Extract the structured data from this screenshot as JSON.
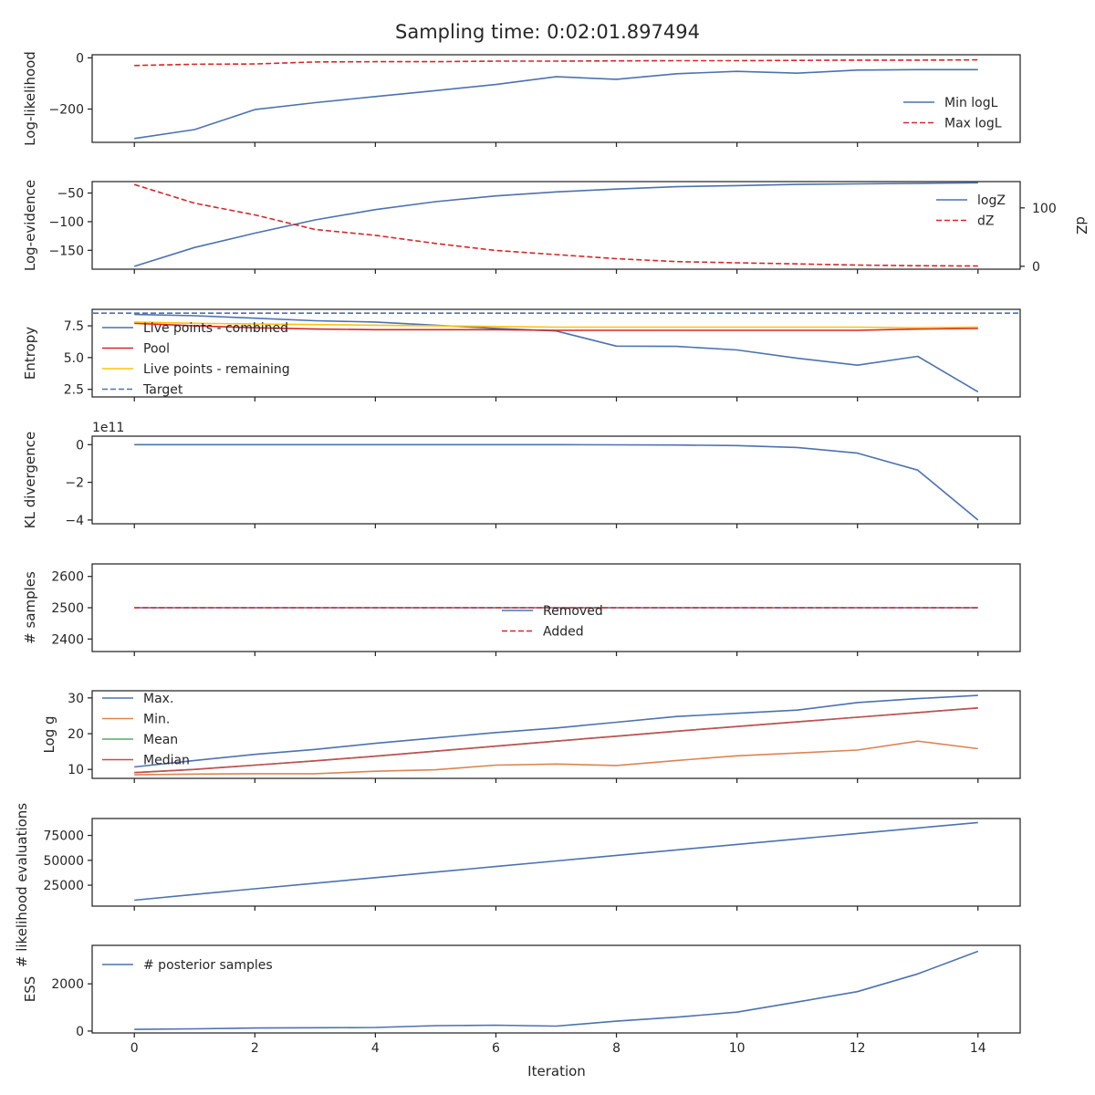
{
  "figure": {
    "title": "Sampling time: 0:02:01.897494",
    "xlabel": "Iteration"
  },
  "chart_data": [
    {
      "type": "line",
      "ylabel": "Log-likelihood",
      "xlim": [
        -0.7,
        14.7
      ],
      "ylim": [
        -330,
        12
      ],
      "yticks": [
        0,
        -200
      ],
      "ytick_labels": [
        "0",
        "−200"
      ],
      "legend_position": "center-right",
      "x": [
        0,
        1,
        2,
        3,
        4,
        5,
        6,
        7,
        8,
        9,
        10,
        11,
        12,
        13,
        14
      ],
      "series": [
        {
          "name": "Min logL",
          "color": "#4c72b0",
          "dash": "solid",
          "values": [
            -315,
            -280,
            -202,
            -175,
            -151,
            -128,
            -104,
            -74,
            -84,
            -62,
            -53,
            -60,
            -48,
            -46,
            -46
          ]
        },
        {
          "name": "Max logL",
          "color": "#d62728",
          "dash": "dashed",
          "values": [
            -30,
            -25,
            -24,
            -16,
            -15,
            -15,
            -13,
            -13,
            -12,
            -11,
            -11,
            -10,
            -9,
            -9,
            -8
          ]
        }
      ]
    },
    {
      "type": "line",
      "ylabel": "Log-evidence",
      "ylabel_right": "dZ",
      "xlim": [
        -0.7,
        14.7
      ],
      "ylim": [
        -183,
        -30
      ],
      "yticks": [
        -50,
        -100,
        -150
      ],
      "ytick_labels": [
        "−50",
        "−100",
        "−150"
      ],
      "ylim_right": [
        -5,
        145
      ],
      "yticks_right": [
        100,
        0
      ],
      "ytick_labels_right": [
        "100",
        "0"
      ],
      "legend_position": "top-right",
      "x": [
        0,
        1,
        2,
        3,
        4,
        5,
        6,
        7,
        8,
        9,
        10,
        11,
        12,
        13,
        14
      ],
      "series": [
        {
          "name": "logZ",
          "color": "#4c72b0",
          "dash": "solid",
          "axis": "left",
          "values": [
            -178,
            -145,
            -120,
            -97,
            -79,
            -65,
            -55,
            -48,
            -43,
            -39,
            -37,
            -35,
            -34,
            -33,
            -32
          ]
        },
        {
          "name": "dZ",
          "color": "#d62728",
          "dash": "dashed",
          "axis": "right",
          "values": [
            140,
            108,
            88,
            63,
            53,
            39,
            27,
            20,
            13,
            8,
            6,
            4,
            2,
            1,
            0.5
          ]
        }
      ]
    },
    {
      "type": "line",
      "ylabel": "Entropy",
      "xlim": [
        -0.7,
        14.7
      ],
      "ylim": [
        1.9,
        8.8
      ],
      "yticks": [
        7.5,
        5.0,
        2.5
      ],
      "ytick_labels": [
        "7.5",
        "5.0",
        "2.5"
      ],
      "legend_position": "top-left",
      "x": [
        0,
        1,
        2,
        3,
        4,
        5,
        6,
        7,
        8,
        9,
        10,
        11,
        12,
        13,
        14
      ],
      "series": [
        {
          "name": "Live points - combined",
          "color": "#4c72b0",
          "dash": "solid",
          "values": [
            8.4,
            8.3,
            8.1,
            7.9,
            7.8,
            7.55,
            7.3,
            7.1,
            5.9,
            5.88,
            5.6,
            4.95,
            4.4,
            5.1,
            2.3
          ]
        },
        {
          "name": "Pool",
          "color": "#d62728",
          "dash": "solid",
          "values": [
            7.7,
            7.5,
            7.35,
            7.25,
            7.2,
            7.2,
            7.2,
            7.15,
            7.15,
            7.15,
            7.15,
            7.15,
            7.15,
            7.25,
            7.3
          ]
        },
        {
          "name": "Live points - remaining",
          "color": "#ffc20a",
          "dash": "solid",
          "values": [
            7.8,
            7.7,
            7.65,
            7.6,
            7.55,
            7.5,
            7.45,
            7.4,
            7.4,
            7.4,
            7.4,
            7.4,
            7.4,
            7.35,
            7.4
          ]
        },
        {
          "name": "Target",
          "color": "#4c72b0",
          "dash": "dashed",
          "values": [
            8.5,
            8.5,
            8.5,
            8.5,
            8.5,
            8.5,
            8.5,
            8.5,
            8.5,
            8.5,
            8.5,
            8.5,
            8.5,
            8.5,
            8.5
          ]
        }
      ]
    },
    {
      "type": "line",
      "ylabel": "KL divergence",
      "offset_text": "1e11",
      "xlim": [
        -0.7,
        14.7
      ],
      "ylim": [
        -4.2,
        0.45
      ],
      "yticks": [
        0,
        -2,
        -4
      ],
      "ytick_labels": [
        "0",
        "−2",
        "−4"
      ],
      "x": [
        0,
        1,
        2,
        3,
        4,
        5,
        6,
        7,
        8,
        9,
        10,
        11,
        12,
        13,
        14
      ],
      "series": [
        {
          "name": "",
          "color": "#4c72b0",
          "dash": "solid",
          "values": [
            0,
            0,
            0,
            0,
            0,
            0,
            0,
            0,
            -0.01,
            -0.02,
            -0.05,
            -0.15,
            -0.45,
            -1.35,
            -4.0
          ]
        }
      ]
    },
    {
      "type": "line",
      "ylabel": "# samples",
      "xlim": [
        -0.7,
        14.7
      ],
      "ylim": [
        2360,
        2640
      ],
      "yticks": [
        2600,
        2500,
        2400
      ],
      "ytick_labels": [
        "2600",
        "2500",
        "2400"
      ],
      "legend_position": "center",
      "x": [
        0,
        1,
        2,
        3,
        4,
        5,
        6,
        7,
        8,
        9,
        10,
        11,
        12,
        13,
        14
      ],
      "series": [
        {
          "name": "Removed",
          "color": "#4c72b0",
          "dash": "solid",
          "values": [
            2500,
            2500,
            2500,
            2500,
            2500,
            2500,
            2500,
            2500,
            2500,
            2500,
            2500,
            2500,
            2500,
            2500,
            2500
          ]
        },
        {
          "name": "Added",
          "color": "#d62728",
          "dash": "dashed",
          "values": [
            2500,
            2500,
            2500,
            2500,
            2500,
            2500,
            2500,
            2500,
            2500,
            2500,
            2500,
            2500,
            2500,
            2500,
            2500
          ]
        }
      ]
    },
    {
      "type": "line",
      "ylabel": "Log g",
      "xlim": [
        -0.7,
        14.7
      ],
      "ylim": [
        7.5,
        32
      ],
      "yticks": [
        30,
        20,
        10
      ],
      "ytick_labels": [
        "30",
        "20",
        "10"
      ],
      "legend_position": "top-left",
      "x": [
        0,
        1,
        2,
        3,
        4,
        5,
        6,
        7,
        8,
        9,
        10,
        11,
        12,
        13,
        14
      ],
      "series": [
        {
          "name": "Max.",
          "color": "#4c72b0",
          "dash": "solid",
          "values": [
            10.7,
            12.5,
            14.2,
            15.6,
            17.3,
            18.8,
            20.3,
            21.6,
            23.2,
            24.8,
            25.7,
            26.6,
            28.7,
            29.8,
            30.7
          ]
        },
        {
          "name": "Min.",
          "color": "#dd8452",
          "dash": "solid",
          "values": [
            8.5,
            8.7,
            8.8,
            8.8,
            9.5,
            9.9,
            11.2,
            11.5,
            11.1,
            12.5,
            13.8,
            14.6,
            15.4,
            17.9,
            15.8
          ]
        },
        {
          "name": "Mean",
          "color": "#55a868",
          "dash": "solid",
          "values": [
            9.1,
            10.0,
            11.2,
            12.4,
            13.7,
            15.1,
            16.5,
            17.9,
            19.3,
            20.7,
            22.0,
            23.3,
            24.6,
            25.9,
            27.2
          ]
        },
        {
          "name": "Median",
          "color": "#c44e52",
          "dash": "solid",
          "values": [
            9.1,
            10.0,
            11.2,
            12.4,
            13.7,
            15.1,
            16.5,
            17.9,
            19.3,
            20.7,
            22.0,
            23.3,
            24.6,
            25.9,
            27.2
          ]
        }
      ]
    },
    {
      "type": "line",
      "ylabel": "# likelihood evaluations",
      "xlim": [
        -0.7,
        14.7
      ],
      "ylim": [
        4000,
        92000
      ],
      "yticks": [
        75000,
        50000,
        25000
      ],
      "ytick_labels": [
        "75000",
        "50000",
        "25000"
      ],
      "x": [
        0,
        1,
        2,
        3,
        4,
        5,
        6,
        7,
        8,
        9,
        10,
        11,
        12,
        13,
        14
      ],
      "series": [
        {
          "name": "",
          "color": "#4c72b0",
          "dash": "solid",
          "values": [
            10000,
            15700,
            21400,
            27000,
            32600,
            38200,
            43800,
            49400,
            55000,
            60500,
            66000,
            71500,
            77000,
            82500,
            88000
          ]
        }
      ]
    },
    {
      "type": "line",
      "ylabel": "ESS",
      "xlim": [
        -0.7,
        14.7
      ],
      "ylim": [
        -80,
        3630
      ],
      "yticks": [
        2000,
        0
      ],
      "ytick_labels": [
        "2000",
        "0"
      ],
      "legend_position": "top-left",
      "x": [
        0,
        1,
        2,
        3,
        4,
        5,
        6,
        7,
        8,
        9,
        10,
        11,
        12,
        13,
        14
      ],
      "series": [
        {
          "name": "# posterior samples",
          "color": "#4c72b0",
          "dash": "solid",
          "values": [
            70,
            95,
            130,
            140,
            150,
            230,
            250,
            210,
            420,
            590,
            800,
            1230,
            1670,
            2420,
            3380
          ]
        }
      ]
    }
  ],
  "xticks": [
    0,
    2,
    4,
    6,
    8,
    10,
    12,
    14
  ],
  "xtick_labels": [
    "0",
    "2",
    "4",
    "6",
    "8",
    "10",
    "12",
    "14"
  ]
}
